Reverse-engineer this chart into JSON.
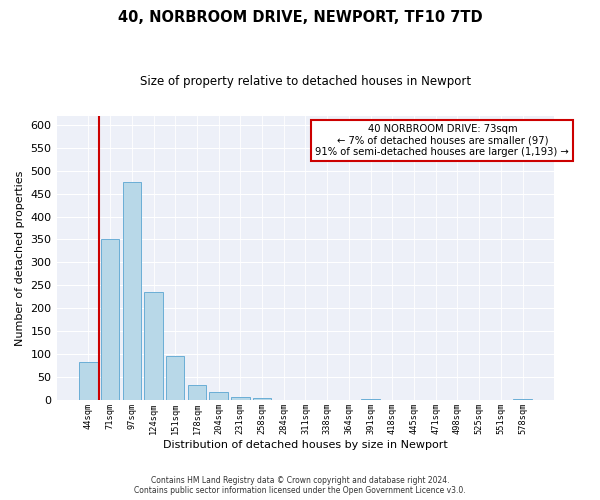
{
  "title": "40, NORBROOM DRIVE, NEWPORT, TF10 7TD",
  "subtitle": "Size of property relative to detached houses in Newport",
  "xlabel": "Distribution of detached houses by size in Newport",
  "ylabel": "Number of detached properties",
  "bin_labels": [
    "44sqm",
    "71sqm",
    "97sqm",
    "124sqm",
    "151sqm",
    "178sqm",
    "204sqm",
    "231sqm",
    "258sqm",
    "284sqm",
    "311sqm",
    "338sqm",
    "364sqm",
    "391sqm",
    "418sqm",
    "445sqm",
    "471sqm",
    "498sqm",
    "525sqm",
    "551sqm",
    "578sqm"
  ],
  "bar_heights": [
    83,
    350,
    475,
    236,
    97,
    34,
    18,
    7,
    4,
    0,
    0,
    0,
    0,
    2,
    0,
    0,
    0,
    0,
    0,
    0,
    2
  ],
  "bar_color": "#b8d8e8",
  "bar_edge_color": "#6aaed6",
  "highlight_line_color": "#cc0000",
  "annotation_text": "40 NORBROOM DRIVE: 73sqm\n← 7% of detached houses are smaller (97)\n91% of semi-detached houses are larger (1,193) →",
  "annotation_box_color": "#ffffff",
  "annotation_box_edge_color": "#cc0000",
  "ylim": [
    0,
    620
  ],
  "yticks": [
    0,
    50,
    100,
    150,
    200,
    250,
    300,
    350,
    400,
    450,
    500,
    550,
    600
  ],
  "background_color": "#edf0f8",
  "grid_color": "#ffffff",
  "footer_line1": "Contains HM Land Registry data © Crown copyright and database right 2024.",
  "footer_line2": "Contains public sector information licensed under the Open Government Licence v3.0."
}
